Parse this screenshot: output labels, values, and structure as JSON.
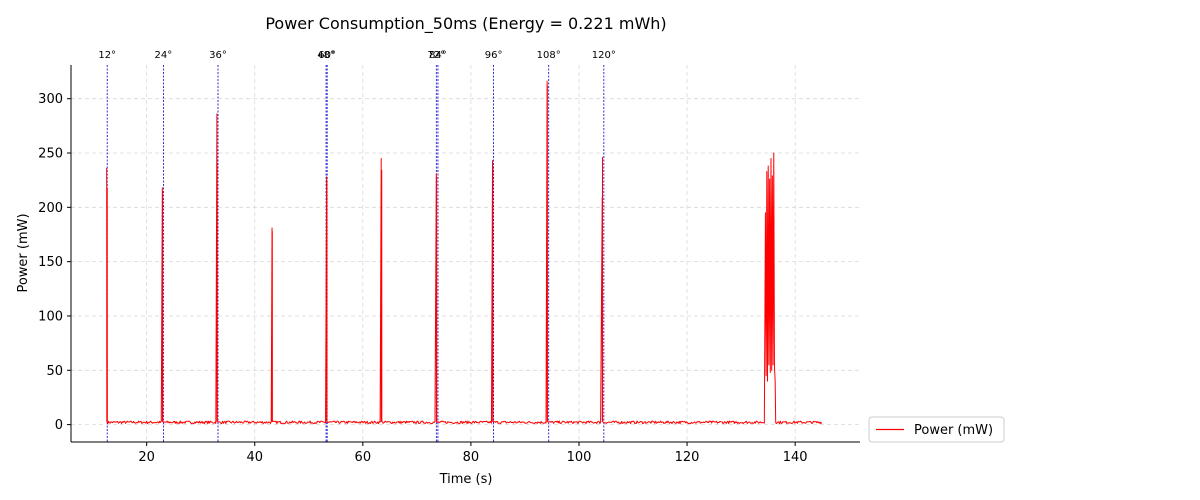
{
  "chart_data": {
    "type": "line",
    "title": "Power Consumption_50ms (Energy = 0.221 mWh)",
    "xlabel": "Time (s)",
    "ylabel": "Power (mW)",
    "xlim": [
      6,
      152
    ],
    "ylim": [
      -16,
      331
    ],
    "xticks": [
      20,
      40,
      60,
      80,
      100,
      120,
      140
    ],
    "yticks": [
      0,
      50,
      100,
      150,
      200,
      250,
      300
    ],
    "grid": true,
    "legend_position": "outside-bottom-right",
    "series": [
      {
        "name": "Power (mW)",
        "color": "#ff0000",
        "baseline": 2,
        "range": [
          12.5,
          145
        ],
        "spikes": [
          {
            "t": 12.6,
            "peaks": [
              236,
              91,
              218
            ]
          },
          {
            "t": 22.9,
            "peaks": [
              218,
              215
            ]
          },
          {
            "t": 33.0,
            "peaks": [
              286,
              240
            ]
          },
          {
            "t": 43.2,
            "peaks": [
              181,
              178
            ]
          },
          {
            "t": 53.3,
            "peaks": [
              228,
              225
            ]
          },
          {
            "t": 63.4,
            "peaks": [
              245,
              68,
              234
            ]
          },
          {
            "t": 73.6,
            "peaks": [
              231,
              228
            ]
          },
          {
            "t": 84.0,
            "peaks": [
              243,
              238
            ]
          },
          {
            "t": 94.1,
            "peaks": [
              316,
              312
            ]
          },
          {
            "t": 104.3,
            "peaks": [
              209,
              246
            ]
          }
        ],
        "burst": {
          "start": 134.5,
          "end": 136.3,
          "peaks": [
            195,
            45,
            233,
            40,
            238,
            55,
            226,
            48,
            245,
            50,
            229,
            55,
            250,
            53
          ]
        }
      }
    ],
    "markers": {
      "color": "#0000cc",
      "items": [
        {
          "label": "12°",
          "x": 12.7
        },
        {
          "label": "24°",
          "x": 23.1
        },
        {
          "label": "36°",
          "x": 33.2
        },
        {
          "label": "48°",
          "x": 53.2
        },
        {
          "label": "60°",
          "x": 53.4
        },
        {
          "label": "72°",
          "x": 73.6
        },
        {
          "label": "84°",
          "x": 73.9
        },
        {
          "label": "96°",
          "x": 84.2
        },
        {
          "label": "108°",
          "x": 94.4
        },
        {
          "label": "120°",
          "x": 104.6
        }
      ]
    }
  }
}
